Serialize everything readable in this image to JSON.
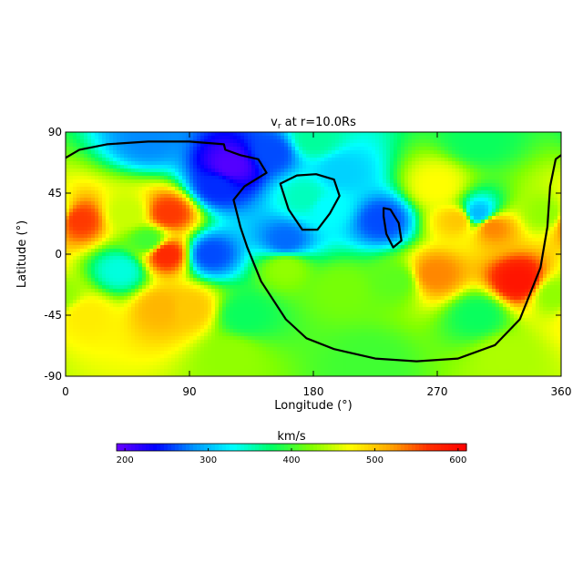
{
  "chart_data": {
    "type": "heatmap",
    "title_main": "v",
    "title_sub": "r",
    "title_rest": " at r=10.0Rs",
    "xlabel": "Longitude (°)",
    "ylabel": "Latitude (°)",
    "xlim": [
      0,
      360
    ],
    "ylim": [
      -90,
      90
    ],
    "xticks": [
      0,
      90,
      180,
      270,
      360
    ],
    "yticks": [
      90,
      45,
      0,
      -45,
      -90
    ],
    "colorbar": {
      "label": "km/s",
      "range": [
        190,
        610
      ],
      "ticks": [
        200,
        300,
        400,
        500,
        600
      ],
      "colormap": [
        "#6a00ff",
        "#0000ff",
        "#0096ff",
        "#00ffff",
        "#00ff64",
        "#7fff00",
        "#ffff00",
        "#ffaa00",
        "#ff3000",
        "#ff0000"
      ]
    },
    "features": [
      {
        "lon": 10,
        "lat": 25,
        "value": 560
      },
      {
        "lon": 15,
        "lat": -45,
        "value": 480
      },
      {
        "lon": 70,
        "lat": -40,
        "value": 510
      },
      {
        "lon": 90,
        "lat": -40,
        "value": 500
      },
      {
        "lon": 45,
        "lat": 30,
        "value": 450
      },
      {
        "lon": 75,
        "lat": 30,
        "value": 560
      },
      {
        "lon": 73,
        "lat": 0,
        "value": 570
      },
      {
        "lon": 40,
        "lat": -12,
        "value": 340
      },
      {
        "lon": 110,
        "lat": 50,
        "value": 250
      },
      {
        "lon": 120,
        "lat": 65,
        "value": 200
      },
      {
        "lon": 150,
        "lat": 75,
        "value": 260
      },
      {
        "lon": 105,
        "lat": 0,
        "value": 260
      },
      {
        "lon": 60,
        "lat": 10,
        "value": 400
      },
      {
        "lon": 200,
        "lat": 60,
        "value": 310
      },
      {
        "lon": 230,
        "lat": 25,
        "value": 260
      },
      {
        "lon": 190,
        "lat": 35,
        "value": 330
      },
      {
        "lon": 175,
        "lat": 42,
        "value": 350
      },
      {
        "lon": 200,
        "lat": -25,
        "value": 420
      },
      {
        "lon": 160,
        "lat": -10,
        "value": 430
      },
      {
        "lon": 240,
        "lat": -20,
        "value": 410
      },
      {
        "lon": 160,
        "lat": 10,
        "value": 270
      },
      {
        "lon": 270,
        "lat": 50,
        "value": 470
      },
      {
        "lon": 285,
        "lat": 25,
        "value": 500
      },
      {
        "lon": 310,
        "lat": 20,
        "value": 530
      },
      {
        "lon": 300,
        "lat": 30,
        "value": 300
      },
      {
        "lon": 330,
        "lat": -20,
        "value": 590
      },
      {
        "lon": 268,
        "lat": -15,
        "value": 530
      },
      {
        "lon": 350,
        "lat": 30,
        "value": 430
      },
      {
        "lon": 180,
        "lat": 85,
        "value": 360
      },
      {
        "lon": 300,
        "lat": 85,
        "value": 380
      },
      {
        "lon": 60,
        "lat": 85,
        "value": 280
      },
      {
        "lon": 220,
        "lat": -80,
        "value": 400
      },
      {
        "lon": 120,
        "lat": -75,
        "value": 430
      },
      {
        "lon": 320,
        "lat": -75,
        "value": 440
      },
      {
        "lon": 355,
        "lat": -30,
        "value": 430
      },
      {
        "lon": 130,
        "lat": -45,
        "value": 380
      },
      {
        "lon": 300,
        "lat": -45,
        "value": 380
      }
    ],
    "contours": [
      {
        "name": "neutral-line-main",
        "points": [
          [
            0,
            71
          ],
          [
            10,
            77
          ],
          [
            30,
            81
          ],
          [
            60,
            83
          ],
          [
            90,
            83
          ],
          [
            115,
            81
          ],
          [
            116,
            77
          ],
          [
            127,
            73
          ],
          [
            140,
            70
          ],
          [
            146,
            60
          ],
          [
            130,
            50
          ],
          [
            122,
            40
          ],
          [
            127,
            20
          ],
          [
            132,
            5
          ],
          [
            142,
            -20
          ],
          [
            160,
            -48
          ],
          [
            175,
            -62
          ],
          [
            195,
            -70
          ],
          [
            225,
            -77
          ],
          [
            255,
            -79
          ],
          [
            285,
            -77
          ],
          [
            312,
            -67
          ],
          [
            330,
            -48
          ],
          [
            345,
            -10
          ],
          [
            350,
            20
          ],
          [
            352,
            50
          ],
          [
            356,
            70
          ],
          [
            360,
            73
          ]
        ]
      },
      {
        "name": "neutral-line-loop-1",
        "points": [
          [
            156,
            52
          ],
          [
            168,
            58
          ],
          [
            182,
            59
          ],
          [
            195,
            55
          ],
          [
            199,
            43
          ],
          [
            192,
            30
          ],
          [
            183,
            18
          ],
          [
            172,
            18
          ],
          [
            162,
            33
          ]
        ]
      },
      {
        "name": "neutral-line-loop-2",
        "points": [
          [
            231,
            34
          ],
          [
            236,
            33
          ],
          [
            242,
            23
          ],
          [
            244,
            10
          ],
          [
            238,
            5
          ],
          [
            233,
            15
          ],
          [
            231,
            28
          ]
        ]
      }
    ]
  }
}
